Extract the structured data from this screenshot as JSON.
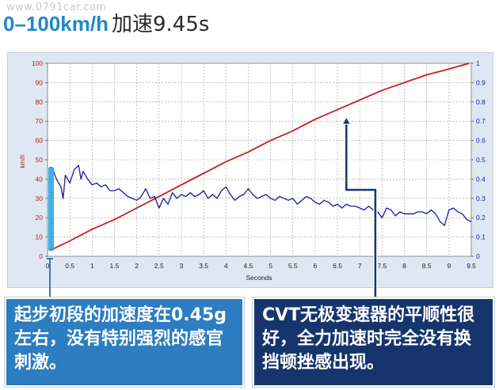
{
  "watermark": "www.0791car.com",
  "header": {
    "title_speed": "0–100km/h",
    "title_rest": "加速9.45s"
  },
  "callouts": {
    "left": "起步初段的加速度在0.45g左右，没有特别强烈的感官刺激。",
    "right": "CVT无极变速器的平顺性很好，全力加速时完全没有换挡顿挫感出现。"
  },
  "colors": {
    "speed_line": "#c81e1e",
    "accel_line": "#1a1aa0",
    "callout_left": "#2c7dc1",
    "callout_right": "#16356d",
    "accent": "#1f88c9"
  },
  "chart_data": {
    "type": "line",
    "xlabel": "Seconds",
    "ylabel": "km/h",
    "xlim": [
      0,
      9.5
    ],
    "ylim": [
      0,
      100
    ],
    "y2lim": [
      0,
      1
    ],
    "grid": true,
    "x_ticks": [
      "0",
      "0.5",
      "1",
      "1.5",
      "2",
      "2.5",
      "3",
      "3.5",
      "4",
      "4.5",
      "5",
      "5.5",
      "6",
      "6.5",
      "7",
      "7.5",
      "8",
      "8.5",
      "9",
      "9.5"
    ],
    "y_ticks": [
      "0",
      "10",
      "20",
      "30",
      "40",
      "50",
      "60",
      "70",
      "80",
      "90",
      "100"
    ],
    "y2_ticks": [
      "0",
      "0.1",
      "0.2",
      "0.3",
      "0.4",
      "0.5",
      "0.6",
      "0.7",
      "0.8",
      "0.9",
      "1"
    ],
    "series": [
      {
        "axis": "left",
        "color": "#c81e1e",
        "x": [
          0.05,
          0.5,
          1.0,
          1.5,
          2.0,
          2.5,
          3.0,
          3.5,
          4.0,
          4.5,
          5.0,
          5.5,
          6.0,
          6.5,
          7.0,
          7.5,
          8.0,
          8.5,
          9.0,
          9.45
        ],
        "y": [
          3,
          8,
          14,
          19,
          25,
          31,
          37,
          43,
          49,
          54,
          60,
          65,
          71,
          76,
          81,
          86,
          90,
          94,
          97,
          100
        ]
      },
      {
        "axis": "right",
        "color": "#1a1aa0",
        "x": [
          0.05,
          0.1,
          0.2,
          0.3,
          0.35,
          0.4,
          0.5,
          0.6,
          0.7,
          0.75,
          0.8,
          0.9,
          1.0,
          1.1,
          1.2,
          1.3,
          1.4,
          1.5,
          1.6,
          1.7,
          1.8,
          1.9,
          2.0,
          2.1,
          2.2,
          2.3,
          2.4,
          2.5,
          2.6,
          2.7,
          2.8,
          2.9,
          3.0,
          3.1,
          3.2,
          3.3,
          3.4,
          3.5,
          3.6,
          3.7,
          3.8,
          3.9,
          4.0,
          4.1,
          4.2,
          4.3,
          4.4,
          4.5,
          4.6,
          4.7,
          4.8,
          4.9,
          5.0,
          5.1,
          5.2,
          5.3,
          5.4,
          5.5,
          5.6,
          5.7,
          5.8,
          5.9,
          6.0,
          6.1,
          6.2,
          6.3,
          6.4,
          6.5,
          6.6,
          6.7,
          6.8,
          6.9,
          7.0,
          7.1,
          7.2,
          7.3,
          7.4,
          7.5,
          7.6,
          7.7,
          7.8,
          7.9,
          8.0,
          8.1,
          8.2,
          8.3,
          8.4,
          8.5,
          8.6,
          8.7,
          8.8,
          8.9,
          9.0,
          9.1,
          9.2,
          9.3,
          9.4,
          9.5
        ],
        "y": [
          0.46,
          0.46,
          0.4,
          0.36,
          0.3,
          0.42,
          0.38,
          0.45,
          0.47,
          0.4,
          0.44,
          0.4,
          0.37,
          0.38,
          0.36,
          0.37,
          0.34,
          0.34,
          0.35,
          0.33,
          0.31,
          0.3,
          0.29,
          0.31,
          0.35,
          0.3,
          0.31,
          0.25,
          0.3,
          0.27,
          0.33,
          0.3,
          0.32,
          0.31,
          0.33,
          0.31,
          0.32,
          0.34,
          0.3,
          0.32,
          0.3,
          0.34,
          0.36,
          0.32,
          0.29,
          0.31,
          0.32,
          0.35,
          0.32,
          0.3,
          0.31,
          0.32,
          0.3,
          0.29,
          0.31,
          0.3,
          0.29,
          0.3,
          0.27,
          0.29,
          0.31,
          0.3,
          0.28,
          0.27,
          0.29,
          0.28,
          0.26,
          0.27,
          0.25,
          0.27,
          0.26,
          0.26,
          0.25,
          0.24,
          0.26,
          0.24,
          0.23,
          0.2,
          0.25,
          0.24,
          0.21,
          0.23,
          0.22,
          0.22,
          0.22,
          0.23,
          0.23,
          0.22,
          0.24,
          0.22,
          0.18,
          0.16,
          0.24,
          0.25,
          0.23,
          0.22,
          0.19,
          0.18
        ]
      }
    ]
  }
}
